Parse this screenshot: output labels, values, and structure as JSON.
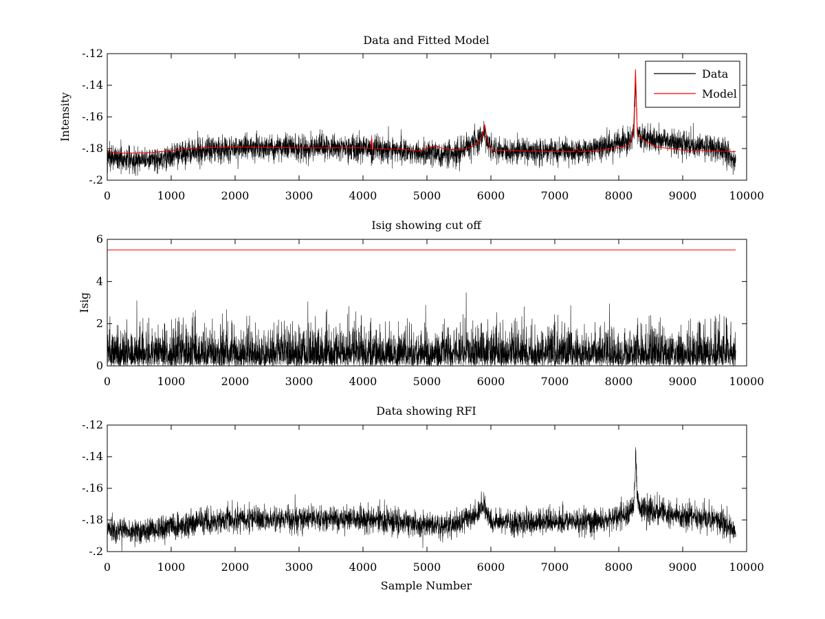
{
  "chart_data": [
    {
      "type": "line",
      "title": "Data and Fitted Model",
      "xlabel": "",
      "ylabel": "Intensity",
      "xlim": [
        0,
        10000
      ],
      "ylim": [
        -0.2,
        -0.12
      ],
      "xticks": [
        0,
        1000,
        2000,
        3000,
        4000,
        5000,
        6000,
        7000,
        8000,
        9000,
        10000
      ],
      "yticks": [
        -0.2,
        -0.18,
        -0.16,
        -0.14,
        -0.12
      ],
      "legend": {
        "placement": "top-right",
        "entries": [
          "Data",
          "Model"
        ]
      },
      "series": [
        {
          "name": "Data",
          "color": "#000000",
          "kind": "noisy",
          "x_end": 9830,
          "noise_sd": 0.004,
          "baseline": [
            [
              0,
              -0.1855
            ],
            [
              400,
              -0.187
            ],
            [
              800,
              -0.1865
            ],
            [
              1200,
              -0.183
            ],
            [
              1500,
              -0.181
            ],
            [
              2000,
              -0.18
            ],
            [
              2500,
              -0.1795
            ],
            [
              3000,
              -0.1795
            ],
            [
              3500,
              -0.179
            ],
            [
              4000,
              -0.18
            ],
            [
              4500,
              -0.181
            ],
            [
              4900,
              -0.183
            ],
            [
              5300,
              -0.1835
            ],
            [
              5500,
              -0.1825
            ],
            [
              5600,
              -0.179
            ],
            [
              5800,
              -0.176
            ],
            [
              5870,
              -0.172
            ],
            [
              5900,
              -0.168
            ],
            [
              5930,
              -0.175
            ],
            [
              6000,
              -0.1805
            ],
            [
              6200,
              -0.1815
            ],
            [
              7000,
              -0.1815
            ],
            [
              7500,
              -0.181
            ],
            [
              7800,
              -0.179
            ],
            [
              8100,
              -0.176
            ],
            [
              8200,
              -0.174
            ],
            [
              8240,
              -0.168
            ],
            [
              8265,
              -0.136
            ],
            [
              8290,
              -0.169
            ],
            [
              8350,
              -0.173
            ],
            [
              8600,
              -0.1745
            ],
            [
              9000,
              -0.177
            ],
            [
              9400,
              -0.179
            ],
            [
              9650,
              -0.1815
            ],
            [
              9830,
              -0.188
            ]
          ],
          "spikes": [
            [
              2330,
              -0.1705
            ],
            [
              4135,
              -0.1715
            ],
            [
              5890,
              -0.1625
            ],
            [
              8262,
              -0.13
            ]
          ]
        },
        {
          "name": "Model",
          "color": "#ff0000",
          "kind": "smooth",
          "points": [
            [
              0,
              -0.182
            ],
            [
              300,
              -0.183
            ],
            [
              700,
              -0.1825
            ],
            [
              1200,
              -0.1805
            ],
            [
              1500,
              -0.1795
            ],
            [
              2000,
              -0.179
            ],
            [
              3000,
              -0.1795
            ],
            [
              4000,
              -0.1795
            ],
            [
              4120,
              -0.18
            ],
            [
              4135,
              -0.173
            ],
            [
              4150,
              -0.18
            ],
            [
              4600,
              -0.1805
            ],
            [
              4900,
              -0.1815
            ],
            [
              5050,
              -0.179
            ],
            [
              5150,
              -0.1785
            ],
            [
              5250,
              -0.18
            ],
            [
              5500,
              -0.181
            ],
            [
              5700,
              -0.179
            ],
            [
              5800,
              -0.176
            ],
            [
              5870,
              -0.172
            ],
            [
              5905,
              -0.165
            ],
            [
              5940,
              -0.174
            ],
            [
              6000,
              -0.181
            ],
            [
              6500,
              -0.1815
            ],
            [
              7300,
              -0.182
            ],
            [
              7340,
              -0.18
            ],
            [
              7380,
              -0.182
            ],
            [
              7700,
              -0.181
            ],
            [
              8000,
              -0.1795
            ],
            [
              8150,
              -0.178
            ],
            [
              8230,
              -0.172
            ],
            [
              8262,
              -0.13
            ],
            [
              8290,
              -0.171
            ],
            [
              8400,
              -0.175
            ],
            [
              8600,
              -0.179
            ],
            [
              9000,
              -0.181
            ],
            [
              9500,
              -0.1815
            ],
            [
              9830,
              -0.182
            ]
          ]
        }
      ]
    },
    {
      "type": "line",
      "title": "Isig showing cut off",
      "xlabel": "",
      "ylabel": "Isig",
      "xlim": [
        0,
        10000
      ],
      "ylim": [
        0,
        6
      ],
      "xticks": [
        0,
        1000,
        2000,
        3000,
        4000,
        5000,
        6000,
        7000,
        8000,
        9000,
        10000
      ],
      "yticks": [
        0,
        2,
        4,
        6
      ],
      "series": [
        {
          "color": "#000000",
          "kind": "abs-noise",
          "x_end": 9830,
          "scale": 0.85,
          "max": 3.5
        },
        {
          "color": "#ff0000",
          "kind": "constant",
          "value": 5.5,
          "x_end": 9830
        }
      ]
    },
    {
      "type": "line",
      "title": "Data showing RFI",
      "xlabel": "Sample Number",
      "ylabel": "",
      "xlim": [
        0,
        10000
      ],
      "ylim": [
        -0.2,
        -0.12
      ],
      "xticks": [
        0,
        1000,
        2000,
        3000,
        4000,
        5000,
        6000,
        7000,
        8000,
        9000,
        10000
      ],
      "yticks": [
        -0.2,
        -0.18,
        -0.16,
        -0.14,
        -0.12
      ],
      "series": [
        {
          "color": "#000000",
          "kind": "noisy",
          "x_end": 9830,
          "noise_sd": 0.004,
          "baseline": [
            [
              0,
              -0.1855
            ],
            [
              400,
              -0.187
            ],
            [
              800,
              -0.1865
            ],
            [
              1200,
              -0.183
            ],
            [
              1500,
              -0.181
            ],
            [
              2000,
              -0.18
            ],
            [
              2500,
              -0.1795
            ],
            [
              3000,
              -0.1795
            ],
            [
              3500,
              -0.179
            ],
            [
              4000,
              -0.18
            ],
            [
              4500,
              -0.181
            ],
            [
              4900,
              -0.183
            ],
            [
              5300,
              -0.1835
            ],
            [
              5500,
              -0.1825
            ],
            [
              5600,
              -0.179
            ],
            [
              5800,
              -0.176
            ],
            [
              5870,
              -0.172
            ],
            [
              5900,
              -0.168
            ],
            [
              5930,
              -0.175
            ],
            [
              6000,
              -0.1805
            ],
            [
              6200,
              -0.1815
            ],
            [
              7000,
              -0.1815
            ],
            [
              7500,
              -0.181
            ],
            [
              7800,
              -0.179
            ],
            [
              8100,
              -0.176
            ],
            [
              8200,
              -0.174
            ],
            [
              8240,
              -0.168
            ],
            [
              8265,
              -0.14
            ],
            [
              8290,
              -0.169
            ],
            [
              8350,
              -0.173
            ],
            [
              8600,
              -0.1745
            ],
            [
              9000,
              -0.177
            ],
            [
              9400,
              -0.179
            ],
            [
              9650,
              -0.1815
            ],
            [
              9830,
              -0.188
            ]
          ],
          "spikes": [
            [
              2330,
              -0.1705
            ],
            [
              4135,
              -0.1715
            ],
            [
              5890,
              -0.1625
            ],
            [
              8262,
              -0.134
            ]
          ]
        }
      ]
    }
  ]
}
